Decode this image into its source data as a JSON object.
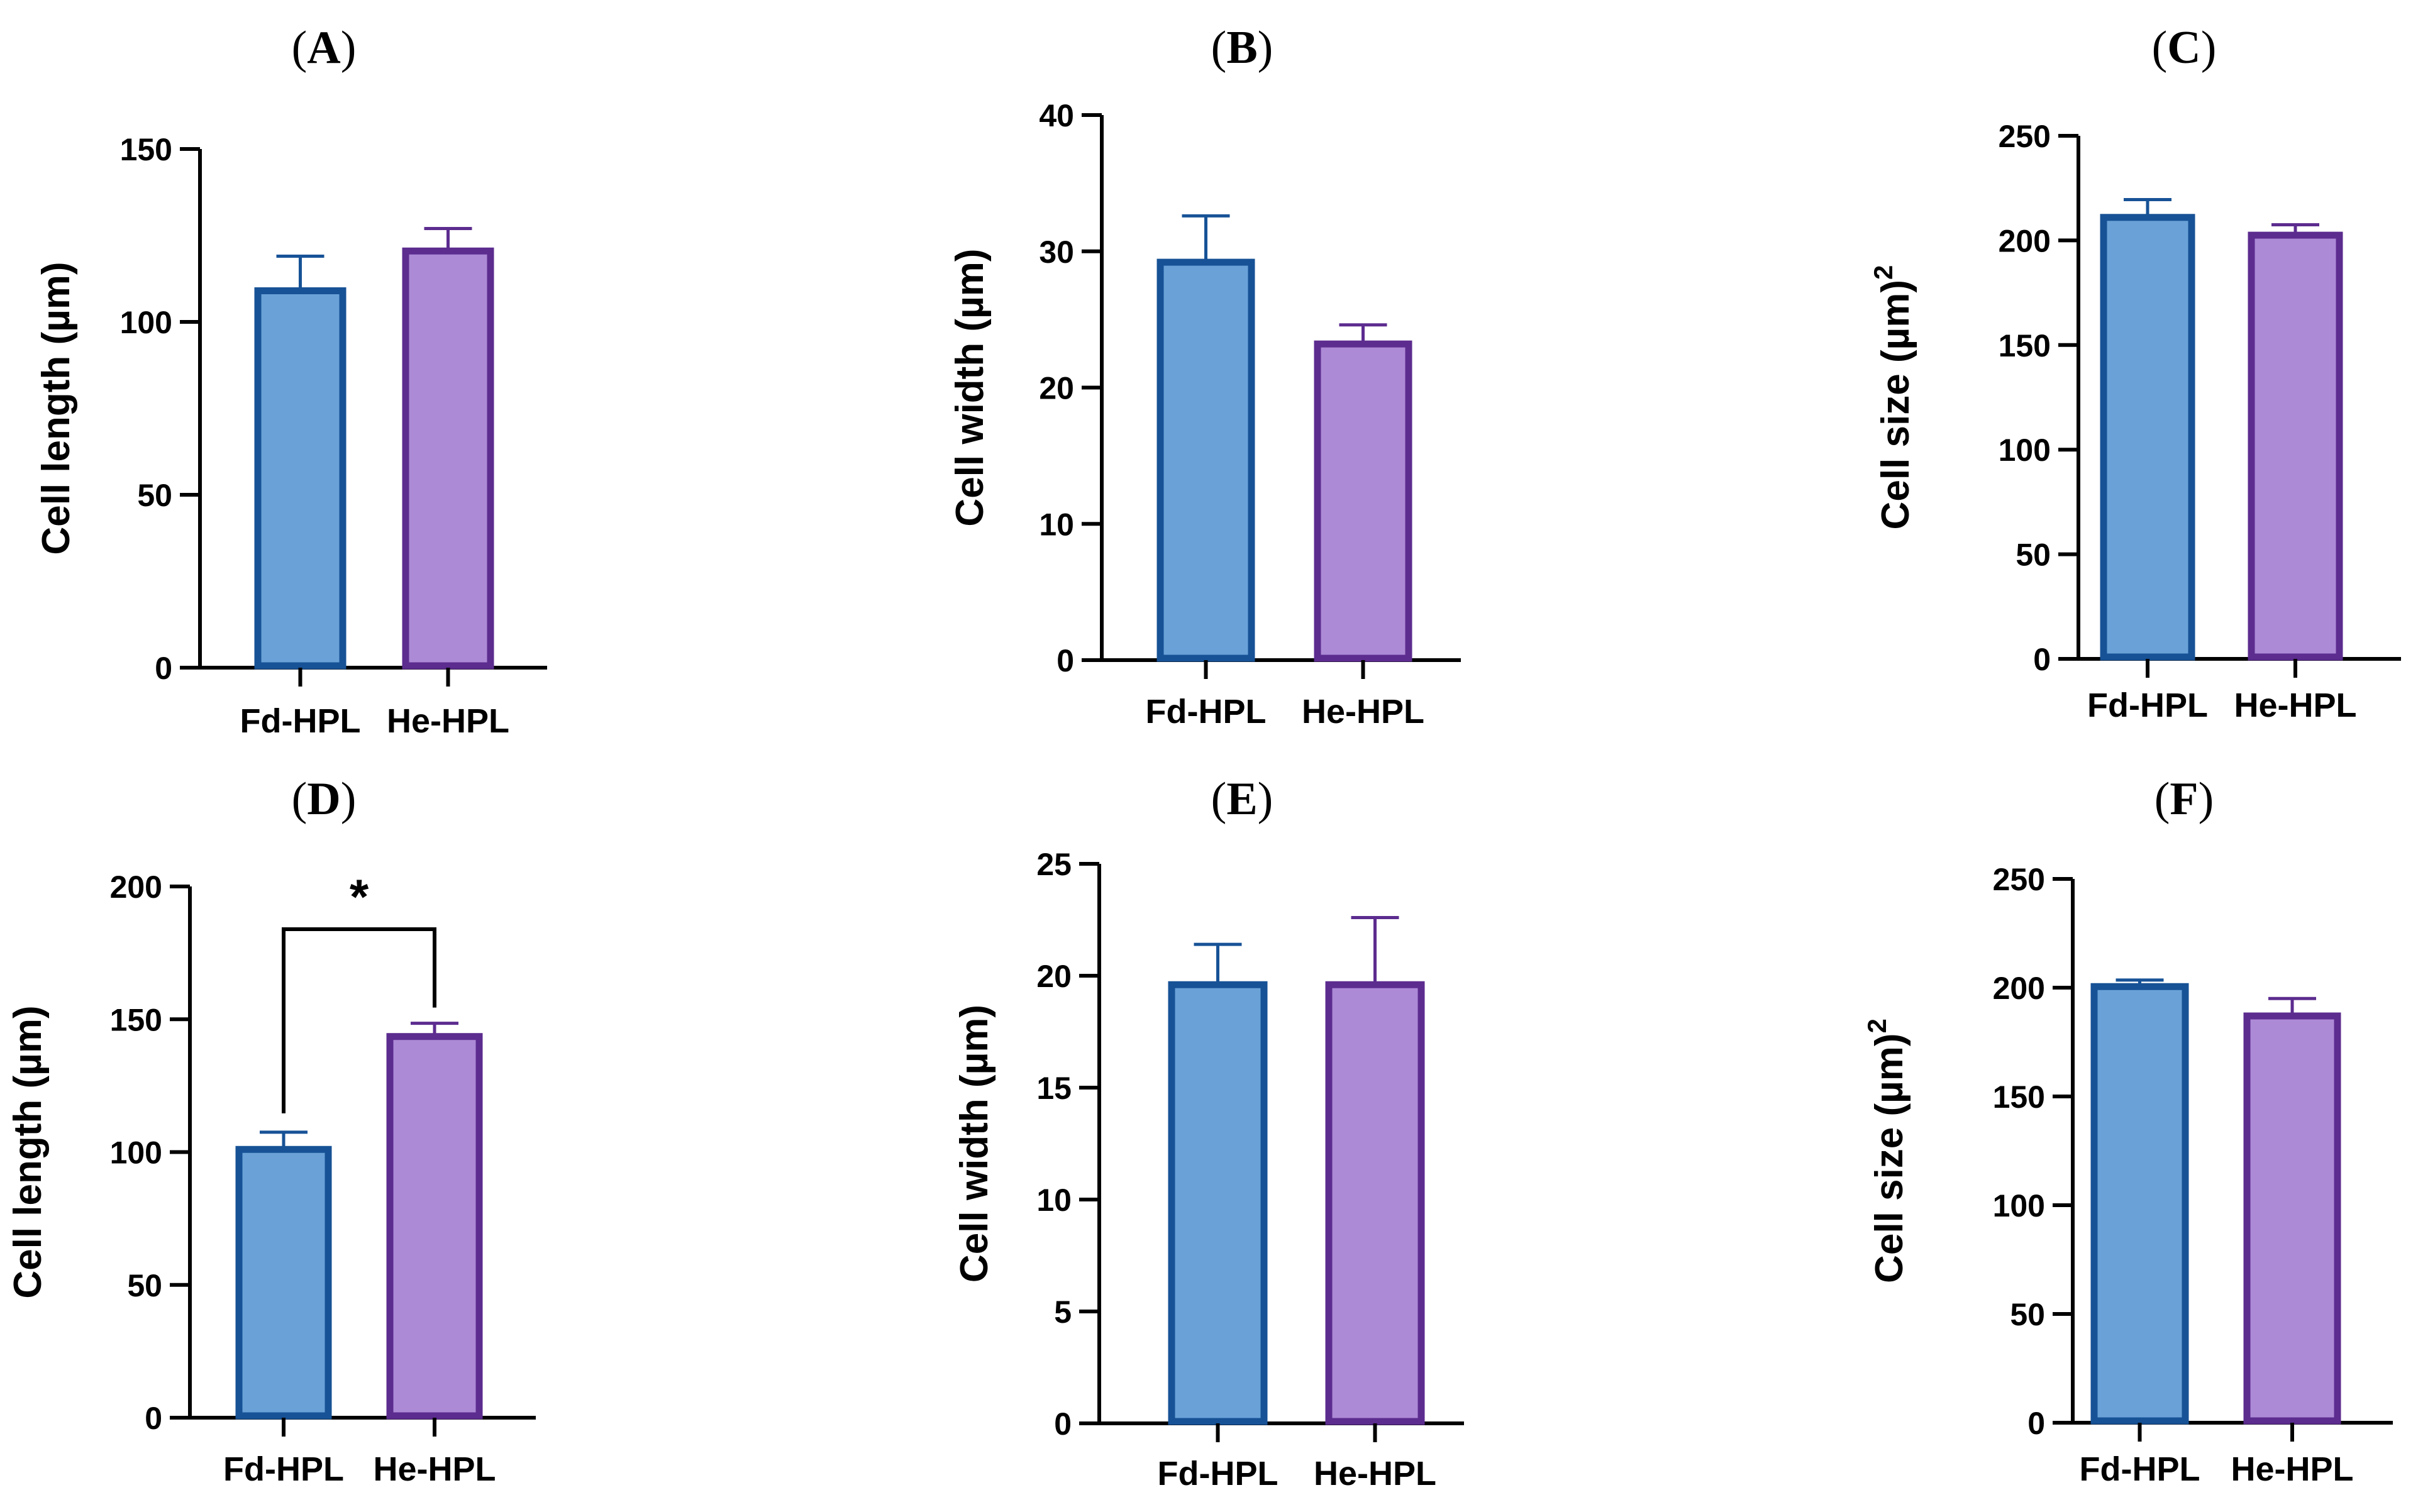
{
  "figure": {
    "description": "Six bar-chart panels comparing cell dimensions between Fd-HPL and He-HPL"
  },
  "colors": {
    "fd_fill": "#6aa2d8",
    "fd_stroke": "#175296",
    "he_fill": "#ad8ad6",
    "he_stroke": "#5c2c8f",
    "axis": "#000000"
  },
  "chart_data": [
    {
      "panel": "A",
      "type": "bar",
      "categories": [
        "Fd-HPL",
        "He-HPL"
      ],
      "values": [
        109,
        120.5
      ],
      "errors": [
        10,
        6.5
      ],
      "ylabel": "Cell length (µm)",
      "ylabel_superscript": "",
      "ylim": [
        0,
        150
      ],
      "yticks": [
        0,
        50,
        100,
        150
      ],
      "significance": null
    },
    {
      "panel": "B",
      "type": "bar",
      "categories": [
        "Fd-HPL",
        "He-HPL"
      ],
      "values": [
        29.2,
        23.2
      ],
      "errors": [
        3.4,
        1.4
      ],
      "ylabel": "Cell width (µm)",
      "ylabel_superscript": "",
      "ylim": [
        0,
        40
      ],
      "yticks": [
        0,
        10,
        20,
        30,
        40
      ],
      "significance": null
    },
    {
      "panel": "C",
      "type": "bar",
      "categories": [
        "Fd-HPL",
        "He-HPL"
      ],
      "values": [
        211,
        202.5
      ],
      "errors": [
        8.5,
        5
      ],
      "ylabel": "Cell size (µm)",
      "ylabel_superscript": "2",
      "ylim": [
        0,
        250
      ],
      "yticks": [
        0,
        50,
        100,
        150,
        200,
        250
      ],
      "significance": null
    },
    {
      "panel": "D",
      "type": "bar",
      "categories": [
        "Fd-HPL",
        "He-HPL"
      ],
      "values": [
        101,
        143.5
      ],
      "errors": [
        6.5,
        5
      ],
      "ylabel": "Cell length (µm)",
      "ylabel_superscript": "",
      "ylim": [
        0,
        200
      ],
      "yticks": [
        0,
        50,
        100,
        150,
        200
      ],
      "significance": "*"
    },
    {
      "panel": "E",
      "type": "bar",
      "categories": [
        "Fd-HPL",
        "He-HPL"
      ],
      "values": [
        19.6,
        19.6
      ],
      "errors": [
        1.8,
        3
      ],
      "ylabel": "Cell width (µm)",
      "ylabel_superscript": "",
      "ylim": [
        0,
        25
      ],
      "yticks": [
        0,
        5,
        10,
        15,
        20,
        25
      ],
      "significance": null
    },
    {
      "panel": "F",
      "type": "bar",
      "categories": [
        "Fd-HPL",
        "He-HPL"
      ],
      "values": [
        200.5,
        187
      ],
      "errors": [
        3,
        8
      ],
      "ylabel": "Cell size (µm)",
      "ylabel_superscript": "2",
      "ylim": [
        0,
        250
      ],
      "yticks": [
        0,
        50,
        100,
        150,
        200,
        250
      ],
      "significance": null
    }
  ]
}
